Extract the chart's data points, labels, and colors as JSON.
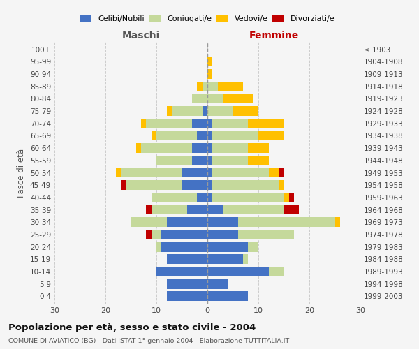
{
  "age_groups": [
    "0-4",
    "5-9",
    "10-14",
    "15-19",
    "20-24",
    "25-29",
    "30-34",
    "35-39",
    "40-44",
    "45-49",
    "50-54",
    "55-59",
    "60-64",
    "65-69",
    "70-74",
    "75-79",
    "80-84",
    "85-89",
    "90-94",
    "95-99",
    "100+"
  ],
  "birth_years": [
    "1999-2003",
    "1994-1998",
    "1989-1993",
    "1984-1988",
    "1979-1983",
    "1974-1978",
    "1969-1973",
    "1964-1968",
    "1959-1963",
    "1954-1958",
    "1949-1953",
    "1944-1948",
    "1939-1943",
    "1934-1938",
    "1929-1933",
    "1924-1928",
    "1919-1923",
    "1914-1918",
    "1909-1913",
    "1904-1908",
    "≤ 1903"
  ],
  "male": {
    "celibi": [
      8,
      8,
      10,
      8,
      9,
      9,
      8,
      4,
      2,
      5,
      5,
      3,
      3,
      2,
      3,
      1,
      0,
      0,
      0,
      0,
      0
    ],
    "coniugati": [
      0,
      0,
      0,
      0,
      1,
      2,
      7,
      7,
      9,
      11,
      12,
      7,
      10,
      8,
      9,
      6,
      3,
      1,
      0,
      0,
      0
    ],
    "vedovi": [
      0,
      0,
      0,
      0,
      0,
      0,
      0,
      0,
      0,
      0,
      1,
      0,
      1,
      1,
      1,
      1,
      0,
      1,
      0,
      0,
      0
    ],
    "divorziati": [
      0,
      0,
      0,
      0,
      0,
      1,
      0,
      1,
      0,
      1,
      0,
      0,
      0,
      0,
      0,
      0,
      0,
      0,
      0,
      0,
      0
    ]
  },
  "female": {
    "nubili": [
      8,
      4,
      12,
      7,
      8,
      6,
      6,
      3,
      1,
      1,
      1,
      1,
      1,
      1,
      1,
      0,
      0,
      0,
      0,
      0,
      0
    ],
    "coniugate": [
      0,
      0,
      3,
      1,
      2,
      11,
      19,
      12,
      14,
      13,
      11,
      7,
      7,
      9,
      7,
      5,
      3,
      2,
      0,
      0,
      0
    ],
    "vedove": [
      0,
      0,
      0,
      0,
      0,
      0,
      1,
      0,
      1,
      1,
      2,
      4,
      4,
      5,
      7,
      5,
      6,
      5,
      1,
      1,
      0
    ],
    "divorziate": [
      0,
      0,
      0,
      0,
      0,
      0,
      0,
      3,
      1,
      0,
      1,
      0,
      0,
      0,
      0,
      0,
      0,
      0,
      0,
      0,
      0
    ]
  },
  "color_celibi": "#4472c4",
  "color_coniugati": "#c5d99b",
  "color_vedovi": "#ffc000",
  "color_divorziati": "#c00000",
  "title": "Popolazione per età, sesso e stato civile - 2004",
  "subtitle": "COMUNE DI AVIATICO (BG) - Dati ISTAT 1° gennaio 2004 - Elaborazione TUTTITALIA.IT",
  "xlabel_left": "Maschi",
  "xlabel_right": "Femmine",
  "ylabel_left": "Fasce di età",
  "xlim": 30,
  "bg_color": "#f5f5f5",
  "grid_color": "#cccccc",
  "maschi_color": "#555555",
  "femmine_color": "#c00000"
}
